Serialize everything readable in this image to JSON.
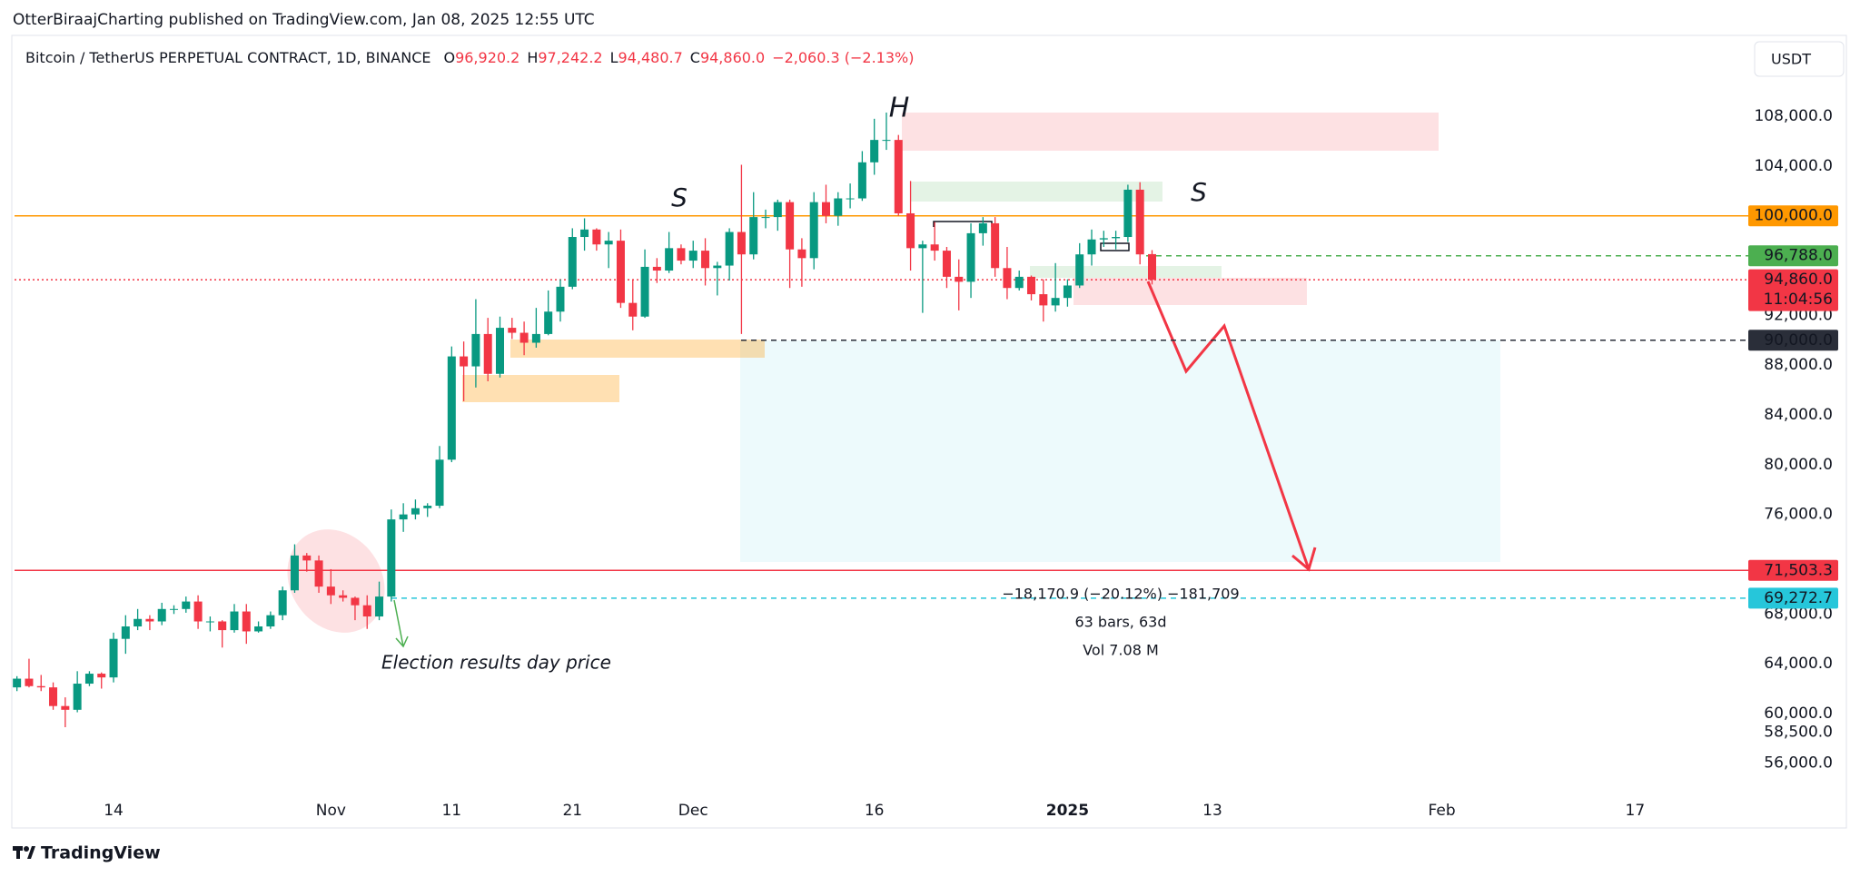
{
  "header": {
    "publisher": "OtterBiraajCharting published on TradingView.com, Jan 08, 2025 12:55 UTC"
  },
  "chart_data": {
    "type": "candlestick",
    "title": "Bitcoin / TetherUS PERPETUAL CONTRACT, 1D, BINANCE",
    "legend_values": [
      {
        "label": "O",
        "value": "96,920.2"
      },
      {
        "label": "H",
        "value": "97,242.2"
      },
      {
        "label": "L",
        "value": "94,480.7"
      },
      {
        "label": "C",
        "value": "94,860.0"
      }
    ],
    "change": "−2,060.3 (−2.13%)",
    "currency": "USDT",
    "up_color": "#089981",
    "down_color": "#f23645",
    "open": [
      62100,
      62800,
      62200,
      62100,
      60600,
      60300,
      62400,
      63200,
      62900,
      66000,
      67000,
      67600,
      67400,
      68400,
      68400,
      69000,
      67400,
      67400,
      66700,
      68200,
      66600,
      67000,
      67900,
      69900,
      72700,
      72300,
      70200,
      69500,
      69300,
      68700,
      67800,
      69400,
      75600,
      76000,
      76500,
      76700,
      80400,
      88700,
      87900,
      90500,
      87300,
      91000,
      90600,
      89800,
      90500,
      92300,
      94300,
      98300,
      98900,
      97700,
      98000,
      93000,
      91900,
      95900,
      95600,
      97400,
      96400,
      97200,
      95800,
      96000,
      98700,
      96900,
      99900,
      99900,
      101100,
      97300,
      96600,
      101100,
      100000,
      101400,
      101400,
      104300,
      106100,
      106100,
      100200,
      97400,
      97700,
      97200,
      95100,
      94700,
      98600,
      99400,
      95800,
      94200,
      95100,
      93700,
      92800,
      93400,
      94400,
      96900,
      98100,
      98200,
      98300,
      102100,
      96920.2
    ],
    "high": [
      63000,
      64400,
      63100,
      62500,
      61300,
      63400,
      63400,
      63300,
      66500,
      67900,
      68400,
      67900,
      68900,
      68700,
      69400,
      69500,
      67800,
      67500,
      68800,
      68800,
      67400,
      68200,
      70200,
      73600,
      72900,
      72700,
      71600,
      69900,
      69400,
      69500,
      70600,
      76400,
      76900,
      77200,
      76900,
      81500,
      89500,
      89900,
      93300,
      91800,
      91900,
      91800,
      91500,
      92600,
      94000,
      94900,
      99000,
      99800,
      99000,
      98700,
      98900,
      94900,
      97300,
      96600,
      98700,
      97700,
      98000,
      98200,
      96300,
      99000,
      104100,
      101900,
      100500,
      101300,
      101300,
      98200,
      101900,
      102500,
      101900,
      102600,
      105200,
      107800,
      108300,
      106500,
      102800,
      98000,
      99500,
      97500,
      96500,
      99400,
      99900,
      99900,
      97500,
      95600,
      95200,
      94900,
      96200,
      94900,
      97800,
      98900,
      98800,
      98800,
      102500,
      102700,
      97242.2
    ],
    "low": [
      61800,
      62100,
      61800,
      60300,
      58900,
      60100,
      62200,
      62000,
      62500,
      64800,
      66700,
      66700,
      67100,
      68000,
      68100,
      66800,
      66600,
      65300,
      66500,
      65600,
      66500,
      66800,
      67500,
      69700,
      71400,
      69700,
      68800,
      69000,
      67500,
      66800,
      67500,
      69000,
      74600,
      75600,
      75800,
      76500,
      80200,
      85100,
      86200,
      86700,
      87000,
      90100,
      88800,
      89400,
      90400,
      91500,
      94100,
      97200,
      97200,
      95800,
      92600,
      90800,
      91800,
      94600,
      95400,
      96100,
      95800,
      94400,
      93600,
      94800,
      90500,
      96500,
      99000,
      98800,
      94200,
      94300,
      95700,
      99400,
      99200,
      100600,
      101200,
      103300,
      105300,
      100000,
      95600,
      92200,
      96400,
      94200,
      92400,
      93400,
      97600,
      95100,
      93300,
      94000,
      93200,
      91500,
      92300,
      92700,
      94200,
      96000,
      97500,
      97300,
      97900,
      96100,
      94480.7
    ],
    "close": [
      62800,
      62200,
      62100,
      60600,
      60300,
      62400,
      63200,
      62900,
      66000,
      67000,
      67600,
      67400,
      68400,
      68400,
      69000,
      67400,
      67400,
      66700,
      68200,
      66600,
      67000,
      67900,
      69900,
      72700,
      72300,
      70200,
      69500,
      69300,
      68700,
      67800,
      69400,
      75600,
      76000,
      76500,
      76700,
      80400,
      88700,
      87900,
      90500,
      87300,
      91000,
      90600,
      89800,
      90500,
      92300,
      94300,
      98300,
      98900,
      97700,
      98000,
      93000,
      91900,
      95900,
      95600,
      97400,
      96400,
      97200,
      95800,
      96000,
      98700,
      96900,
      99900,
      99900,
      101100,
      97300,
      96600,
      101100,
      100000,
      101400,
      101400,
      104300,
      106100,
      106100,
      100200,
      97400,
      97700,
      97200,
      95100,
      94700,
      98600,
      99400,
      95800,
      94200,
      95100,
      93700,
      92800,
      93400,
      94400,
      96900,
      98100,
      98200,
      98300,
      102100,
      96900,
      94860
    ],
    "xlim": [
      -0.2,
      143
    ],
    "xticks": [
      {
        "value": 8,
        "label": "14"
      },
      {
        "value": 26,
        "label": "Nov"
      },
      {
        "value": 36,
        "label": "11"
      },
      {
        "value": 46,
        "label": "21"
      },
      {
        "value": 56,
        "label": "Dec"
      },
      {
        "value": 71,
        "label": "16"
      },
      {
        "value": 87,
        "label": "2025"
      },
      {
        "value": 99,
        "label": "13"
      },
      {
        "value": 118,
        "label": "Feb"
      },
      {
        "value": 134,
        "label": "17"
      }
    ],
    "ylim": [
      53500,
      114500
    ],
    "yticks": [
      {
        "value": 56000,
        "label": "56,000.0"
      },
      {
        "value": 58500,
        "label": "58,500.0"
      },
      {
        "value": 60000,
        "label": "60,000.0"
      },
      {
        "value": 64000,
        "label": "64,000.0"
      },
      {
        "value": 68000,
        "label": "68,000.0"
      },
      {
        "value": 76000,
        "label": "76,000.0"
      },
      {
        "value": 80000,
        "label": "80,000.0"
      },
      {
        "value": 84000,
        "label": "84,000.0"
      },
      {
        "value": 88000,
        "label": "88,000.0"
      },
      {
        "value": 92000,
        "label": "92,000.0"
      },
      {
        "value": 104000,
        "label": "104,000.0"
      },
      {
        "value": 108000,
        "label": "108,000.0"
      }
    ],
    "grid": false,
    "levels": [
      {
        "value": 100000,
        "label": "100,000.0",
        "color": "#ff9800",
        "style": "solid"
      },
      {
        "value": 96788,
        "label": "96,788.0",
        "color": "#4caf50",
        "style": "dashed"
      },
      {
        "value": 94860,
        "label": "94,860.0",
        "color": "#f23645",
        "style": "dotted"
      },
      {
        "value": 90000,
        "label": "90,000.0",
        "color": "#2a2e39",
        "style": "dashed"
      },
      {
        "value": 71503.3,
        "label": "71,503.3",
        "color": "#f23645",
        "style": "solid"
      },
      {
        "value": 69272.7,
        "label": "69,272.7",
        "color": "#26c6da",
        "style": "dashed"
      }
    ],
    "countdown": "11:04:56",
    "annotations": [
      "H",
      "S",
      "S",
      "Election results day price"
    ],
    "measurement": [
      "−18,170.9 (−20.12%) −181,709",
      "63 bars, 63d",
      "Vol 7.08 M"
    ]
  },
  "footer": {
    "brand": "TradingView"
  }
}
